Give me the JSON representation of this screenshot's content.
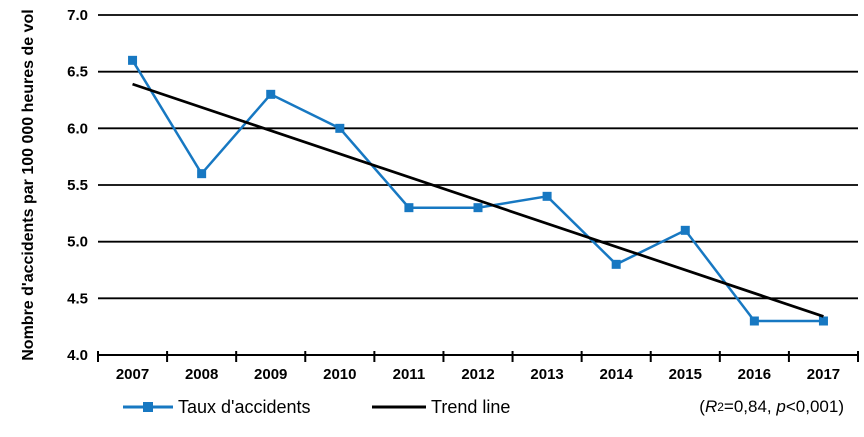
{
  "chart_data": {
    "type": "line",
    "title": "",
    "xlabel": "",
    "ylabel": "Nombre d'accidents par 100 000 heures de vol",
    "categories": [
      "2007",
      "2008",
      "2009",
      "2010",
      "2011",
      "2012",
      "2013",
      "2014",
      "2015",
      "2016",
      "2017"
    ],
    "series": [
      {
        "name": "Taux d'accidents",
        "values": [
          6.6,
          5.6,
          6.3,
          6.0,
          5.3,
          5.3,
          5.4,
          4.8,
          5.1,
          4.3,
          4.3
        ],
        "color": "#1778c2",
        "marker": "square"
      }
    ],
    "trend_line": {
      "name": "Trend line",
      "start_value": 6.39,
      "end_value": 4.34,
      "color": "#000000"
    },
    "ylim": [
      4.0,
      7.0
    ],
    "ytick_values": [
      7.0,
      6.5,
      6.0,
      5.5,
      5.0,
      4.5,
      4.0
    ],
    "ytick_labels": [
      "7.0",
      "6.5",
      "6.0",
      "5.5",
      "5.0",
      "4.5",
      "4.0"
    ],
    "grid": "horizontal",
    "legend_position": "bottom",
    "legend": [
      {
        "label": "Taux d'accidents",
        "swatch": "line-with-square-marker",
        "color": "#1778c2"
      },
      {
        "label": "Trend line",
        "swatch": "line",
        "color": "#000000"
      }
    ],
    "annotation": {
      "open_paren": "(",
      "r_symbol": "R",
      "r_exponent": "2",
      "r_value": "=0,84, ",
      "p_symbol": "p",
      "p_value": "<0,001",
      "close_paren": ")"
    }
  }
}
